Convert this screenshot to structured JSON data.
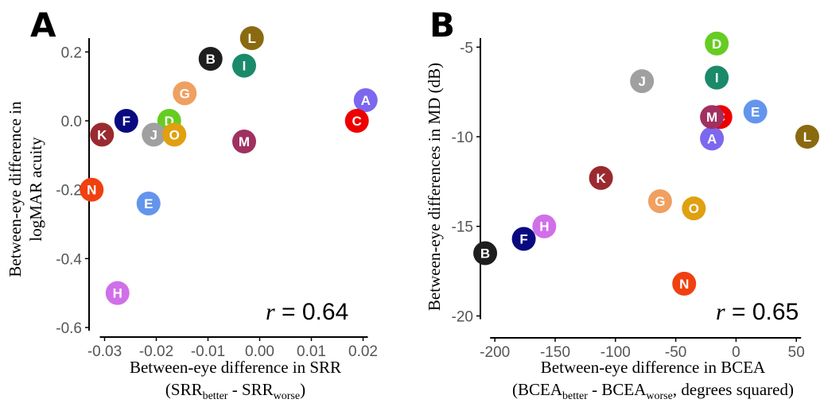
{
  "chart_data": [
    {
      "panel": "A",
      "type": "scatter",
      "xlabel_parts": [
        "Between-eye difference in SRR",
        "(SRR",
        "better",
        " - SRR",
        "worse",
        ")"
      ],
      "ylabel_lines": [
        "Between-eye difference in",
        "logMAR acuity"
      ],
      "xlim": [
        -0.033,
        0.021
      ],
      "ylim": [
        -0.6,
        0.24
      ],
      "xticks": [
        -0.03,
        -0.02,
        -0.01,
        0.0,
        0.01,
        0.02
      ],
      "xtick_labels": [
        "-0.03",
        "-0.02",
        "-0.01",
        "0.00",
        "0.01",
        "0.02"
      ],
      "yticks": [
        -0.6,
        -0.4,
        -0.2,
        0.0,
        0.2
      ],
      "ytick_labels": [
        "-0.6",
        "-0.4",
        "-0.2",
        "0.0",
        "0.2"
      ],
      "annotation": {
        "r_symbol": "r",
        "text": " = 0.64"
      },
      "points": [
        {
          "label": "A",
          "x": 0.0205,
          "y": 0.06,
          "color": "#7b68ee"
        },
        {
          "label": "B",
          "x": -0.0095,
          "y": 0.18,
          "color": "#1e1e1e"
        },
        {
          "label": "C",
          "x": 0.0188,
          "y": 0.0,
          "color": "#ee0000"
        },
        {
          "label": "D",
          "x": -0.0175,
          "y": 0.0,
          "color": "#66cc22"
        },
        {
          "label": "E",
          "x": -0.0215,
          "y": -0.24,
          "color": "#6495ed"
        },
        {
          "label": "F",
          "x": -0.0258,
          "y": 0.0,
          "color": "#0a0a80"
        },
        {
          "label": "G",
          "x": -0.0145,
          "y": 0.08,
          "color": "#f0a060"
        },
        {
          "label": "H",
          "x": -0.0275,
          "y": -0.5,
          "color": "#d070e8"
        },
        {
          "label": "I",
          "x": -0.003,
          "y": 0.16,
          "color": "#1a8a6a"
        },
        {
          "label": "J",
          "x": -0.0205,
          "y": -0.04,
          "color": "#a0a0a0"
        },
        {
          "label": "K",
          "x": -0.0305,
          "y": -0.04,
          "color": "#9a2a30"
        },
        {
          "label": "L",
          "x": -0.0015,
          "y": 0.24,
          "color": "#8a6a10"
        },
        {
          "label": "M",
          "x": -0.003,
          "y": -0.06,
          "color": "#a03060"
        },
        {
          "label": "N",
          "x": -0.0325,
          "y": -0.2,
          "color": "#f04010"
        },
        {
          "label": "O",
          "x": -0.0165,
          "y": -0.04,
          "color": "#e0a010"
        }
      ]
    },
    {
      "panel": "B",
      "type": "scatter",
      "xlabel_parts": [
        "Between-eye difference in BCEA",
        "(BCEA",
        "better",
        " - BCEA",
        "worse",
        ", degrees squared)"
      ],
      "ylabel_lines": [
        "Between-eye differences in MD (dB)"
      ],
      "xlim": [
        -212,
        65
      ],
      "ylim": [
        -21,
        -4.5
      ],
      "xticks": [
        -200,
        -150,
        -100,
        -50,
        0,
        50
      ],
      "xtick_labels": [
        "-200",
        "-150",
        "-100",
        "-50",
        "0",
        "50"
      ],
      "yticks": [
        -20,
        -15,
        -10,
        -5
      ],
      "ytick_labels": [
        "-20",
        "-15",
        "-10",
        "-5"
      ],
      "annotation": {
        "r_symbol": "r",
        "text": " = 0.65"
      },
      "points": [
        {
          "label": "A",
          "x": -20,
          "y": -10.1,
          "color": "#7b68ee"
        },
        {
          "label": "B",
          "x": -208,
          "y": -16.5,
          "color": "#1e1e1e"
        },
        {
          "label": "C",
          "x": -13,
          "y": -8.9,
          "color": "#ee0000"
        },
        {
          "label": "D",
          "x": -16,
          "y": -4.8,
          "color": "#66cc22"
        },
        {
          "label": "E",
          "x": 16,
          "y": -8.6,
          "color": "#6495ed"
        },
        {
          "label": "F",
          "x": -176,
          "y": -15.7,
          "color": "#0a0a80"
        },
        {
          "label": "G",
          "x": -63,
          "y": -13.6,
          "color": "#f0a060"
        },
        {
          "label": "H",
          "x": -159,
          "y": -15.0,
          "color": "#d070e8"
        },
        {
          "label": "I",
          "x": -16,
          "y": -6.7,
          "color": "#1a8a6a"
        },
        {
          "label": "J",
          "x": -78,
          "y": -6.9,
          "color": "#a0a0a0"
        },
        {
          "label": "K",
          "x": -112,
          "y": -12.3,
          "color": "#9a2a30"
        },
        {
          "label": "L",
          "x": 64,
          "y": -10.0,
          "color": "#8a6a10"
        },
        {
          "label": "M",
          "x": -20,
          "y": -8.9,
          "color": "#a03060"
        },
        {
          "label": "N",
          "x": -43,
          "y": -18.2,
          "color": "#f04010"
        },
        {
          "label": "O",
          "x": -35,
          "y": -14.0,
          "color": "#e0a010"
        }
      ]
    }
  ]
}
